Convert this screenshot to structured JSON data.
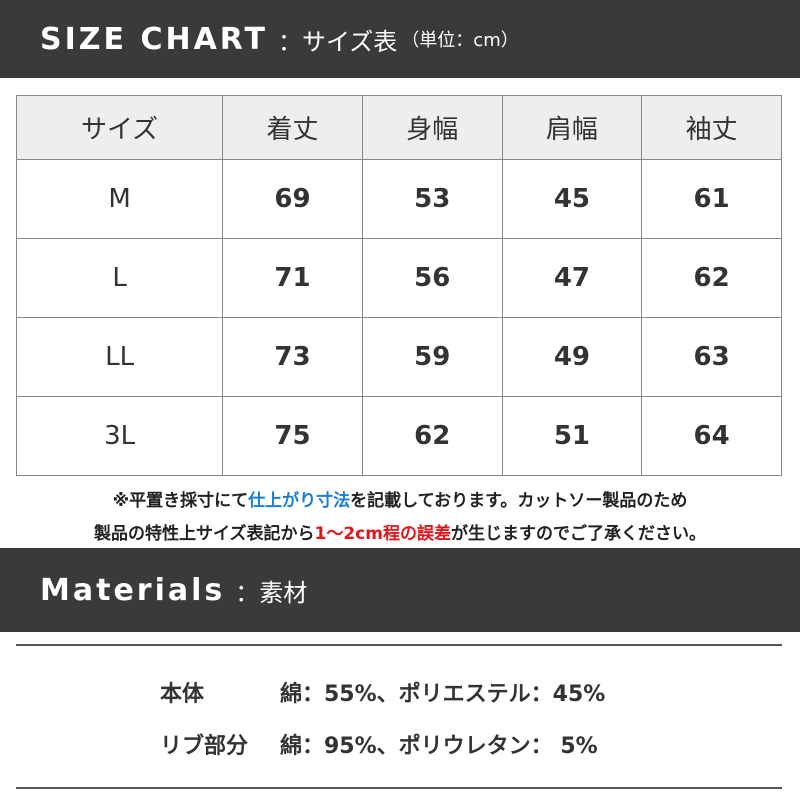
{
  "header": {
    "title": "SIZE CHART",
    "subtitle": "：サイズ表",
    "unit": "（単位：cm）"
  },
  "table": {
    "columns": [
      "サイズ",
      "着丈",
      "身幅",
      "肩幅",
      "袖丈"
    ],
    "rows": [
      [
        "M",
        69,
        53,
        45,
        61
      ],
      [
        "L",
        71,
        56,
        47,
        62
      ],
      [
        "LL",
        73,
        59,
        49,
        63
      ],
      [
        "3L",
        75,
        62,
        51,
        64
      ]
    ]
  },
  "note": {
    "lines": [
      [
        {
          "text": "※平置き採寸にて",
          "color": "#222222"
        },
        {
          "text": "仕上がり寸法",
          "color": "#1a7fd4"
        },
        {
          "text": "を記載しております。カットソー製品のため",
          "color": "#222222"
        }
      ],
      [
        {
          "text": "製品の特性上サイズ表記から",
          "color": "#222222"
        },
        {
          "text": "1〜2cm程の誤差",
          "color": "#e0161b"
        },
        {
          "text": "が生じますのでご了承ください。",
          "color": "#222222"
        }
      ]
    ]
  },
  "materials": {
    "title": "Materials",
    "subtitle": "：素材",
    "rows": [
      {
        "label": "本体",
        "value": "綿：55%、ポリエステル：45%"
      },
      {
        "label": "リブ部分",
        "value": "綿：95%、ポリウレタン： 5%"
      }
    ]
  }
}
